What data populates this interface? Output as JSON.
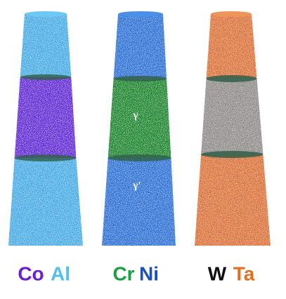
{
  "columns": [
    {
      "elements": [
        "Co",
        "Al"
      ]
    },
    {
      "elements": [
        "Cr",
        "Ni"
      ]
    },
    {
      "elements": [
        "W",
        "Ta"
      ]
    }
  ],
  "phases": {
    "gamma": "γ",
    "gamma_prime": "γ'"
  }
}
